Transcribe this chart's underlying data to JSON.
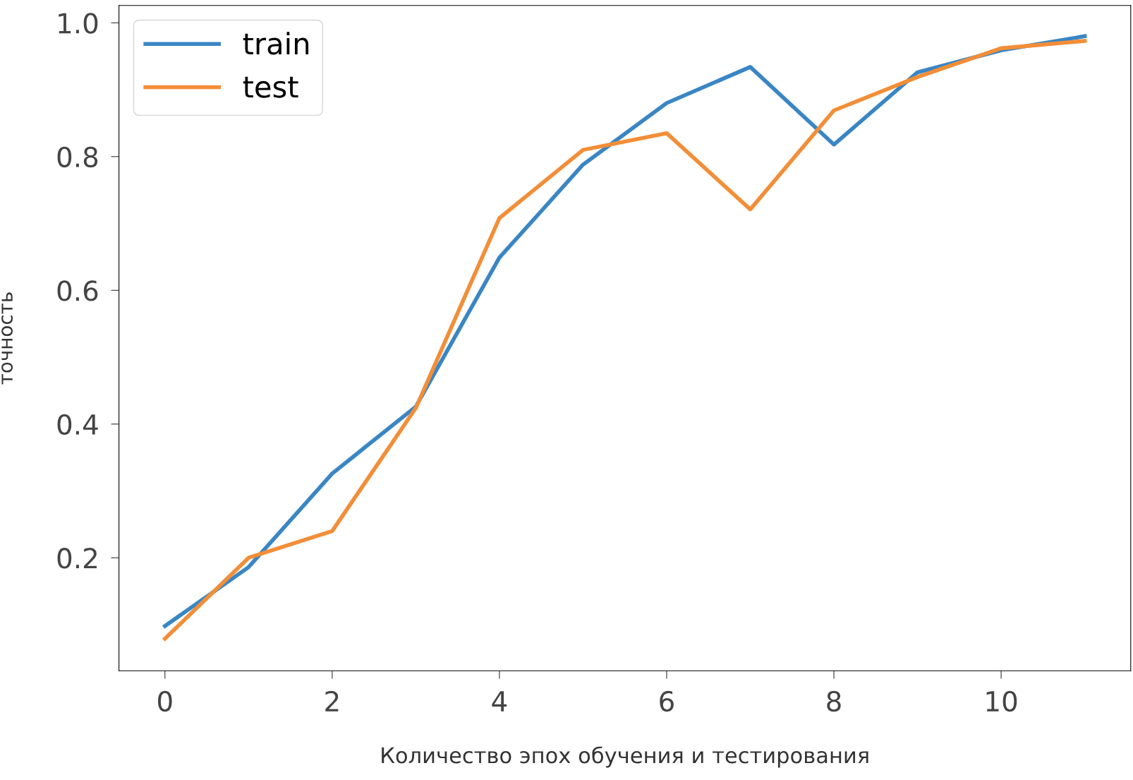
{
  "chart_data": {
    "type": "line",
    "xlabel": "Количество эпох обучения и тестирования",
    "ylabel": "точность",
    "x": [
      0,
      1,
      2,
      3,
      4,
      5,
      6,
      7,
      8,
      9,
      10,
      11
    ],
    "series": [
      {
        "name": "train",
        "color": "#3a86c4",
        "values": [
          0.098,
          0.186,
          0.326,
          0.426,
          0.649,
          0.788,
          0.88,
          0.934,
          0.818,
          0.926,
          0.959,
          0.98
        ]
      },
      {
        "name": "test",
        "color": "#f28e38",
        "values": [
          0.079,
          0.2,
          0.24,
          0.424,
          0.708,
          0.81,
          0.835,
          0.721,
          0.869,
          0.919,
          0.962,
          0.973
        ]
      }
    ],
    "xlim": [
      -0.55,
      11.55
    ],
    "xticks": [
      0,
      2,
      4,
      6,
      8,
      10
    ],
    "ylim": [
      0.031,
      1.026
    ],
    "yticks": [
      0.2,
      0.4,
      0.6,
      0.8,
      {
        "value": 1.0,
        "label": "1.0"
      }
    ],
    "legend": "top left",
    "grid": false,
    "marker": "none",
    "line_style": "solid"
  }
}
